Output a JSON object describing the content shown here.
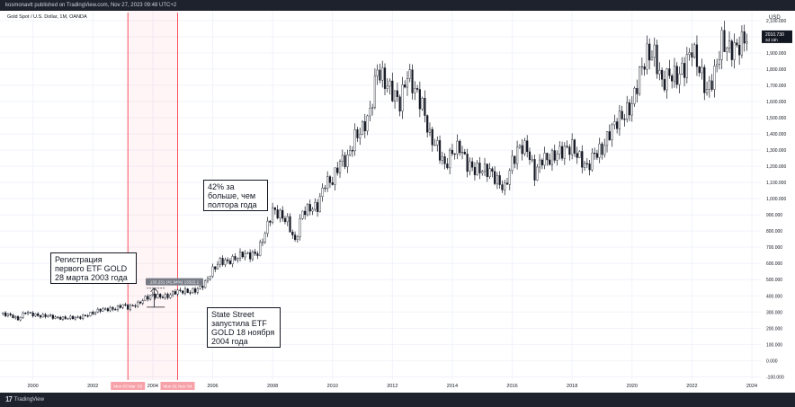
{
  "header": {
    "publisher": "kosmonavtt published on TradingView.com, Nov 27, 2023 09:48 UTC+2"
  },
  "symbol_line": "Gold Spot / U.S. Dollar, 1M, OANDA",
  "currency": "USD",
  "footer": {
    "brand": "TradingView",
    "logo": "17"
  },
  "annotations": {
    "etf_registration": [
      "Регистрация",
      "первого ETF GOLD",
      "28 марта 2003 года"
    ],
    "growth": [
      "42% за",
      "больше, чем",
      "полтора года"
    ],
    "state_street": [
      "State Street",
      "запустила ETF",
      "GOLD 18 ноября",
      "2004 года"
    ],
    "measure_label": "133.231 (41.94%) 13322.1",
    "range_start_label": "Mon 03 Mar '03",
    "range_end_label": "Mon 01 Nov '04"
  },
  "price_label": {
    "value": "2010.730",
    "sub": "3d 15h"
  },
  "colors": {
    "accent": "#f7525f",
    "candles": "#131722",
    "grid": "#f0f3fa",
    "chrome": "#1e222d"
  },
  "chart_data": {
    "type": "candlestick",
    "x_range": [
      1998.9,
      2024.3
    ],
    "y_range": [
      -120,
      2160
    ],
    "x_ticks": [
      {
        "v": 2000,
        "label": "2000"
      },
      {
        "v": 2002,
        "label": "2002"
      },
      {
        "v": 2004,
        "label": "2004"
      },
      {
        "v": 2006,
        "label": "2006"
      },
      {
        "v": 2008,
        "label": "2008"
      },
      {
        "v": 2010,
        "label": "2010"
      },
      {
        "v": 2012,
        "label": "2012"
      },
      {
        "v": 2014,
        "label": "2014"
      },
      {
        "v": 2016,
        "label": "2016"
      },
      {
        "v": 2018,
        "label": "2018"
      },
      {
        "v": 2020,
        "label": "2020"
      },
      {
        "v": 2022,
        "label": "2022"
      },
      {
        "v": 2024,
        "label": "2024"
      }
    ],
    "y_ticks": [
      {
        "v": 2100,
        "label": "2,100.000"
      },
      {
        "v": 2000,
        "label": "2,000.000"
      },
      {
        "v": 1900,
        "label": "1,900.000"
      },
      {
        "v": 1800,
        "label": "1,800.000"
      },
      {
        "v": 1700,
        "label": "1,700.000"
      },
      {
        "v": 1600,
        "label": "1,600.000"
      },
      {
        "v": 1500,
        "label": "1,500.000"
      },
      {
        "v": 1400,
        "label": "1,400.000"
      },
      {
        "v": 1300,
        "label": "1,300.000"
      },
      {
        "v": 1200,
        "label": "1,200.000"
      },
      {
        "v": 1100,
        "label": "1,100.000"
      },
      {
        "v": 1000,
        "label": "1,000.000"
      },
      {
        "v": 900,
        "label": "900.000"
      },
      {
        "v": 800,
        "label": "800.000"
      },
      {
        "v": 700,
        "label": "700.000"
      },
      {
        "v": 600,
        "label": "600.000"
      },
      {
        "v": 500,
        "label": "500.000"
      },
      {
        "v": 400,
        "label": "400.000"
      },
      {
        "v": 300,
        "label": "300.000"
      },
      {
        "v": 200,
        "label": "200.000"
      },
      {
        "v": 100,
        "label": "100.000"
      },
      {
        "v": 0,
        "label": "0.000"
      },
      {
        "v": -100,
        "label": "-100.000"
      }
    ],
    "range_start": 2003.17,
    "range_end": 2004.83,
    "last_price": 2010.73,
    "closes": [
      [
        1999.0,
        288
      ],
      [
        1999.25,
        280
      ],
      [
        1999.5,
        255
      ],
      [
        1999.75,
        300
      ],
      [
        2000.0,
        285
      ],
      [
        2000.25,
        275
      ],
      [
        2000.5,
        278
      ],
      [
        2000.75,
        265
      ],
      [
        2001.0,
        262
      ],
      [
        2001.25,
        265
      ],
      [
        2001.5,
        265
      ],
      [
        2001.75,
        277
      ],
      [
        2002.0,
        295
      ],
      [
        2002.25,
        315
      ],
      [
        2002.5,
        318
      ],
      [
        2002.75,
        320
      ],
      [
        2003.0,
        345
      ],
      [
        2003.17,
        328
      ],
      [
        2003.5,
        350
      ],
      [
        2003.75,
        385
      ],
      [
        2004.0,
        405
      ],
      [
        2004.25,
        395
      ],
      [
        2004.5,
        398
      ],
      [
        2004.75,
        425
      ],
      [
        2005.0,
        430
      ],
      [
        2005.25,
        425
      ],
      [
        2005.5,
        440
      ],
      [
        2005.75,
        480
      ],
      [
        2006.0,
        560
      ],
      [
        2006.25,
        615
      ],
      [
        2006.5,
        610
      ],
      [
        2006.75,
        630
      ],
      [
        2007.0,
        660
      ],
      [
        2007.25,
        650
      ],
      [
        2007.5,
        665
      ],
      [
        2007.75,
        790
      ],
      [
        2008.0,
        930
      ],
      [
        2008.25,
        900
      ],
      [
        2008.5,
        860
      ],
      [
        2008.75,
        730
      ],
      [
        2009.0,
        920
      ],
      [
        2009.25,
        940
      ],
      [
        2009.5,
        950
      ],
      [
        2009.75,
        1100
      ],
      [
        2010.0,
        1110
      ],
      [
        2010.25,
        1230
      ],
      [
        2010.5,
        1245
      ],
      [
        2010.75,
        1380
      ],
      [
        2011.0,
        1430
      ],
      [
        2011.25,
        1530
      ],
      [
        2011.5,
        1800
      ],
      [
        2011.75,
        1720
      ],
      [
        2012.0,
        1660
      ],
      [
        2012.25,
        1590
      ],
      [
        2012.5,
        1770
      ],
      [
        2012.75,
        1670
      ],
      [
        2013.0,
        1580
      ],
      [
        2013.25,
        1380
      ],
      [
        2013.5,
        1320
      ],
      [
        2013.75,
        1200
      ],
      [
        2014.0,
        1290
      ],
      [
        2014.25,
        1320
      ],
      [
        2014.5,
        1210
      ],
      [
        2014.75,
        1180
      ],
      [
        2015.0,
        1180
      ],
      [
        2015.25,
        1170
      ],
      [
        2015.5,
        1110
      ],
      [
        2015.75,
        1060
      ],
      [
        2016.0,
        1230
      ],
      [
        2016.25,
        1320
      ],
      [
        2016.5,
        1310
      ],
      [
        2016.75,
        1150
      ],
      [
        2017.0,
        1250
      ],
      [
        2017.25,
        1240
      ],
      [
        2017.5,
        1280
      ],
      [
        2017.75,
        1300
      ],
      [
        2018.0,
        1320
      ],
      [
        2018.25,
        1250
      ],
      [
        2018.5,
        1190
      ],
      [
        2018.75,
        1280
      ],
      [
        2019.0,
        1300
      ],
      [
        2019.25,
        1410
      ],
      [
        2019.5,
        1480
      ],
      [
        2019.75,
        1520
      ],
      [
        2020.0,
        1580
      ],
      [
        2020.25,
        1770
      ],
      [
        2020.5,
        1890
      ],
      [
        2020.75,
        1890
      ],
      [
        2021.0,
        1710
      ],
      [
        2021.25,
        1770
      ],
      [
        2021.5,
        1750
      ],
      [
        2021.75,
        1810
      ],
      [
        2022.0,
        1930
      ],
      [
        2022.25,
        1800
      ],
      [
        2022.5,
        1660
      ],
      [
        2022.75,
        1770
      ],
      [
        2023.0,
        1970
      ],
      [
        2023.25,
        1920
      ],
      [
        2023.5,
        1930
      ],
      [
        2023.75,
        1985
      ],
      [
        2023.9,
        2010.73
      ]
    ]
  }
}
